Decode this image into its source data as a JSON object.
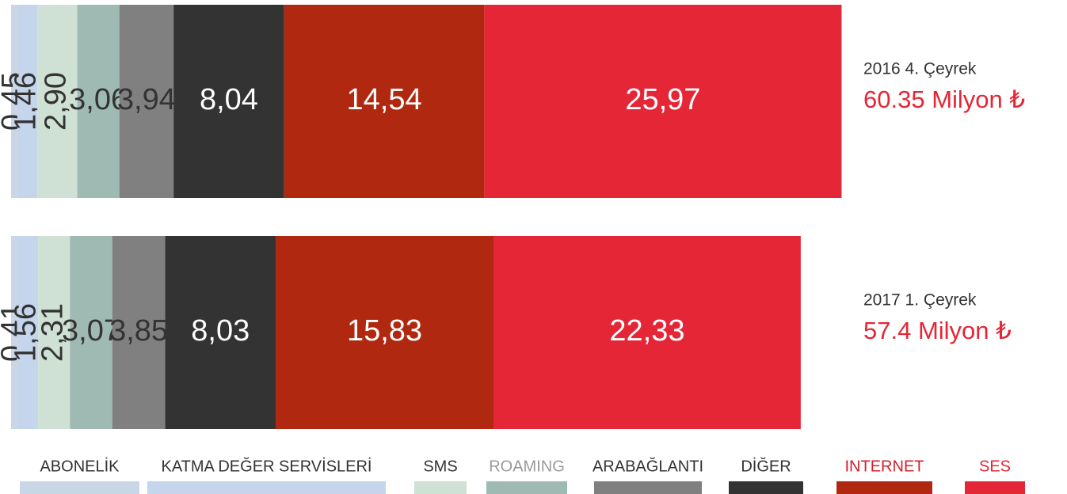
{
  "chart_data": {
    "type": "stacked-barh",
    "categories": [
      "2016 4. Çeyrek",
      "2017 1. Çeyrek"
    ],
    "total_labels": [
      "60.35 Milyon ₺",
      "57.4 Milyon ₺"
    ],
    "series": [
      {
        "name": "ABONELİK",
        "color": "#c9d6e6",
        "label_color": "#333333",
        "legend_text_color": "#333333",
        "values": [
          0.45,
          0.41
        ],
        "value_labels": [
          "0,45",
          "0,41"
        ]
      },
      {
        "name": "KATMA DEĞER SERVİSLERİ",
        "color": "#c4d5ec",
        "label_color": "#333333",
        "legend_text_color": "#333333",
        "values": [
          1.46,
          1.56
        ],
        "value_labels": [
          "1,46",
          "1,56"
        ]
      },
      {
        "name": "SMS",
        "color": "#cfe0d4",
        "label_color": "#333333",
        "legend_text_color": "#333333",
        "values": [
          2.9,
          2.31
        ],
        "value_labels": [
          "2,90",
          "2,31"
        ]
      },
      {
        "name": "ROAMING",
        "color": "#9fb9b3",
        "label_color": "#333333",
        "legend_text_color": "#9a9a9a",
        "values": [
          3.06,
          3.07
        ],
        "value_labels": [
          "3,06",
          "3,07"
        ]
      },
      {
        "name": "ARABAĞLANTI",
        "color": "#808080",
        "label_color": "#333333",
        "legend_text_color": "#333333",
        "values": [
          3.94,
          3.85
        ],
        "value_labels": [
          "3,94",
          "3,85"
        ]
      },
      {
        "name": "DİĞER",
        "color": "#333333",
        "label_color": "#ffffff",
        "legend_text_color": "#333333",
        "values": [
          8.04,
          8.03
        ],
        "value_labels": [
          "8,04",
          "8,03"
        ]
      },
      {
        "name": "INTERNET",
        "color": "#b0280f",
        "label_color": "#ffffff",
        "legend_text_color": "#d4202c",
        "values": [
          14.54,
          15.83
        ],
        "value_labels": [
          "14,54",
          "15,83"
        ]
      },
      {
        "name": "SES",
        "color": "#e52636",
        "label_color": "#ffffff",
        "legend_text_color": "#e52636",
        "values": [
          25.97,
          22.33
        ],
        "value_labels": [
          "25,97",
          "22,33"
        ]
      }
    ]
  }
}
